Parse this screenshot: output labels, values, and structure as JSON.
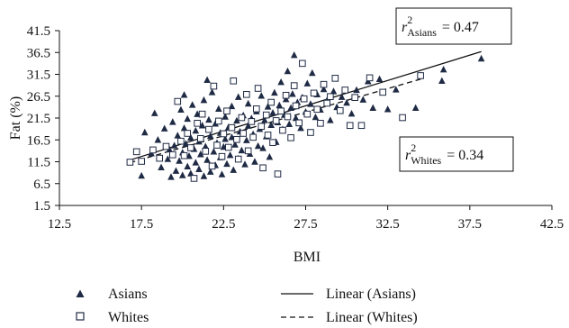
{
  "chart_data": {
    "type": "scatter",
    "xlabel": "BMI",
    "ylabel": "Fat (%)",
    "xlim": [
      12.5,
      42.5
    ],
    "ylim": [
      1.5,
      41.5
    ],
    "xticks": [
      "12.5",
      "17.5",
      "22.5",
      "27.5",
      "32.5",
      "37.5",
      "42.5"
    ],
    "yticks": [
      "1.5",
      "6.5",
      "11.5",
      "16.5",
      "21.5",
      "26.5",
      "31.5",
      "36.5",
      "41.5"
    ],
    "grid": false,
    "legend_position": "bottom",
    "series": [
      {
        "name": "Asians",
        "marker": "triangle",
        "points": [
          [
            17.5,
            8.3
          ],
          [
            17.7,
            18.2
          ],
          [
            18.1,
            13.4
          ],
          [
            18.3,
            22.6
          ],
          [
            18.5,
            16.5
          ],
          [
            18.7,
            10.2
          ],
          [
            18.9,
            19.1
          ],
          [
            19.1,
            12.1
          ],
          [
            19.2,
            14.3
          ],
          [
            19.3,
            8.0
          ],
          [
            19.4,
            20.6
          ],
          [
            19.5,
            15.2
          ],
          [
            19.6,
            9.4
          ],
          [
            19.7,
            17.5
          ],
          [
            19.8,
            11.7
          ],
          [
            19.9,
            23.4
          ],
          [
            20.0,
            13.6
          ],
          [
            20.0,
            8.4
          ],
          [
            20.1,
            19.2
          ],
          [
            20.1,
            26.8
          ],
          [
            20.2,
            15.6
          ],
          [
            20.3,
            10.4
          ],
          [
            20.3,
            21.3
          ],
          [
            20.4,
            12.8
          ],
          [
            20.5,
            17.0
          ],
          [
            20.5,
            8.8
          ],
          [
            20.6,
            24.5
          ],
          [
            20.7,
            14.4
          ],
          [
            20.8,
            18.6
          ],
          [
            20.8,
            11.3
          ],
          [
            20.9,
            22.4
          ],
          [
            21.0,
            9.8
          ],
          [
            21.0,
            16.1
          ],
          [
            21.1,
            13.2
          ],
          [
            21.2,
            19.8
          ],
          [
            21.3,
            8.2
          ],
          [
            21.3,
            25.6
          ],
          [
            21.4,
            15.0
          ],
          [
            21.5,
            11.9
          ],
          [
            21.5,
            30.2
          ],
          [
            21.6,
            21.1
          ],
          [
            21.7,
            17.4
          ],
          [
            21.7,
            9.2
          ],
          [
            21.8,
            27.4
          ],
          [
            21.9,
            13.8
          ],
          [
            22.0,
            20.2
          ],
          [
            22.0,
            10.7
          ],
          [
            22.1,
            15.8
          ],
          [
            22.2,
            23.6
          ],
          [
            22.3,
            12.5
          ],
          [
            22.3,
            18.1
          ],
          [
            22.4,
            8.6
          ],
          [
            22.5,
            14.9
          ],
          [
            22.6,
            21.8
          ],
          [
            22.6,
            16.7
          ],
          [
            22.7,
            11.0
          ],
          [
            22.8,
            19.4
          ],
          [
            22.9,
            13.0
          ],
          [
            23.0,
            24.2
          ],
          [
            23.0,
            17.1
          ],
          [
            23.1,
            9.6
          ],
          [
            23.2,
            15.4
          ],
          [
            23.3,
            20.9
          ],
          [
            23.4,
            12.2
          ],
          [
            23.4,
            26.3
          ],
          [
            23.5,
            18.4
          ],
          [
            23.6,
            14.1
          ],
          [
            23.7,
            22.1
          ],
          [
            23.8,
            10.9
          ],
          [
            23.9,
            16.4
          ],
          [
            24.0,
            19.7
          ],
          [
            24.0,
            24.8
          ],
          [
            24.1,
            13.3
          ],
          [
            24.2,
            21.4
          ],
          [
            24.3,
            17.8
          ],
          [
            24.4,
            11.5
          ],
          [
            24.5,
            23.0
          ],
          [
            24.6,
            15.1
          ],
          [
            24.7,
            19.0
          ],
          [
            24.8,
            26.6
          ],
          [
            24.9,
            14.6
          ],
          [
            25.0,
            21.0
          ],
          [
            25.1,
            17.3
          ],
          [
            25.2,
            24.1
          ],
          [
            25.3,
            12.6
          ],
          [
            25.4,
            19.9
          ],
          [
            25.5,
            22.7
          ],
          [
            25.6,
            27.3
          ],
          [
            25.7,
            16.0
          ],
          [
            25.8,
            20.5
          ],
          [
            25.9,
            24.4
          ],
          [
            26.0,
            29.7
          ],
          [
            26.1,
            18.9
          ],
          [
            26.2,
            22.2
          ],
          [
            26.3,
            25.8
          ],
          [
            26.4,
            32.2
          ],
          [
            26.5,
            20.1
          ],
          [
            26.6,
            23.8
          ],
          [
            26.7,
            27.0
          ],
          [
            26.8,
            35.9
          ],
          [
            26.9,
            21.5
          ],
          [
            27.0,
            25.1
          ],
          [
            27.2,
            19.2
          ],
          [
            27.3,
            26.2
          ],
          [
            27.5,
            22.9
          ],
          [
            27.6,
            29.4
          ],
          [
            27.8,
            24.7
          ],
          [
            27.9,
            31.8
          ],
          [
            28.1,
            21.7
          ],
          [
            28.2,
            26.9
          ],
          [
            28.4,
            23.4
          ],
          [
            28.6,
            28.1
          ],
          [
            28.8,
            25.5
          ],
          [
            29.0,
            21.0
          ],
          [
            29.2,
            27.6
          ],
          [
            29.4,
            24.0
          ],
          [
            29.7,
            26.3
          ],
          [
            30.0,
            25.0
          ],
          [
            30.3,
            22.5
          ],
          [
            30.6,
            27.9
          ],
          [
            31.0,
            25.7
          ],
          [
            31.3,
            29.9
          ],
          [
            31.6,
            23.8
          ],
          [
            32.0,
            30.4
          ],
          [
            32.5,
            23.5
          ],
          [
            33.0,
            28.0
          ],
          [
            34.2,
            23.8
          ],
          [
            35.8,
            30.0
          ],
          [
            35.9,
            32.6
          ],
          [
            38.2,
            35.1
          ]
        ]
      },
      {
        "name": "Whites",
        "marker": "square",
        "points": [
          [
            16.8,
            11.4
          ],
          [
            17.2,
            13.8
          ],
          [
            17.5,
            11.6
          ],
          [
            18.2,
            14.2
          ],
          [
            18.6,
            12.3
          ],
          [
            19.0,
            15.0
          ],
          [
            19.4,
            13.1
          ],
          [
            19.7,
            25.3
          ],
          [
            19.9,
            16.2
          ],
          [
            20.1,
            12.9
          ],
          [
            20.3,
            18.0
          ],
          [
            20.5,
            14.7
          ],
          [
            20.7,
            7.7
          ],
          [
            20.9,
            20.3
          ],
          [
            21.1,
            16.8
          ],
          [
            21.2,
            22.4
          ],
          [
            21.4,
            13.9
          ],
          [
            21.6,
            18.9
          ],
          [
            21.8,
            10.5
          ],
          [
            21.9,
            28.8
          ],
          [
            22.1,
            15.3
          ],
          [
            22.2,
            20.8
          ],
          [
            22.4,
            12.7
          ],
          [
            22.5,
            17.9
          ],
          [
            22.7,
            23.1
          ],
          [
            22.8,
            14.8
          ],
          [
            23.0,
            19.3
          ],
          [
            23.1,
            30.0
          ],
          [
            23.3,
            16.6
          ],
          [
            23.4,
            12.1
          ],
          [
            23.6,
            21.6
          ],
          [
            23.7,
            18.0
          ],
          [
            23.9,
            26.9
          ],
          [
            24.0,
            14.0
          ],
          [
            24.2,
            20.7
          ],
          [
            24.3,
            17.1
          ],
          [
            24.5,
            23.6
          ],
          [
            24.6,
            28.3
          ],
          [
            24.8,
            19.6
          ],
          [
            24.9,
            10.1
          ],
          [
            25.1,
            22.2
          ],
          [
            25.2,
            17.6
          ],
          [
            25.4,
            25.1
          ],
          [
            25.5,
            15.9
          ],
          [
            25.7,
            20.9
          ],
          [
            25.8,
            8.7
          ],
          [
            26.0,
            23.1
          ],
          [
            26.1,
            18.7
          ],
          [
            26.3,
            26.7
          ],
          [
            26.4,
            21.8
          ],
          [
            26.6,
            17.0
          ],
          [
            26.8,
            28.9
          ],
          [
            26.9,
            24.3
          ],
          [
            27.1,
            20.4
          ],
          [
            27.3,
            34.0
          ],
          [
            27.4,
            25.9
          ],
          [
            27.6,
            22.4
          ],
          [
            27.8,
            18.2
          ],
          [
            28.0,
            27.2
          ],
          [
            28.2,
            23.5
          ],
          [
            28.4,
            20.3
          ],
          [
            28.6,
            29.2
          ],
          [
            28.8,
            24.9
          ],
          [
            29.0,
            26.4
          ],
          [
            29.3,
            30.6
          ],
          [
            29.6,
            23.2
          ],
          [
            29.9,
            27.9
          ],
          [
            30.2,
            19.8
          ],
          [
            30.5,
            26.2
          ],
          [
            30.9,
            19.8
          ],
          [
            31.4,
            30.7
          ],
          [
            32.2,
            27.4
          ],
          [
            33.4,
            21.6
          ],
          [
            34.5,
            31.2
          ]
        ]
      }
    ],
    "trendlines": [
      {
        "name": "Linear (Asians)",
        "style": "solid",
        "x": [
          16.8,
          38.2
        ],
        "y": [
          11.9,
          36.7
        ]
      },
      {
        "name": "Linear (Whites)",
        "style": "dashed",
        "x": [
          16.8,
          34.5
        ],
        "y": [
          11.3,
          30.4
        ]
      }
    ],
    "annotations": [
      {
        "id": "r2-asians",
        "symbol": "r",
        "superscript": "2",
        "subscript": "Asians",
        "text": "= 0.47"
      },
      {
        "id": "r2-whites",
        "symbol": "r",
        "superscript": "2",
        "subscript": "Whites",
        "text": "= 0.34"
      }
    ],
    "legend": [
      {
        "label": "Asians",
        "marker": "triangle"
      },
      {
        "label": "Whites",
        "marker": "square"
      },
      {
        "label": "Linear (Asians)",
        "line": "solid"
      },
      {
        "label": "Linear (Whites)",
        "line": "dashed"
      }
    ]
  }
}
